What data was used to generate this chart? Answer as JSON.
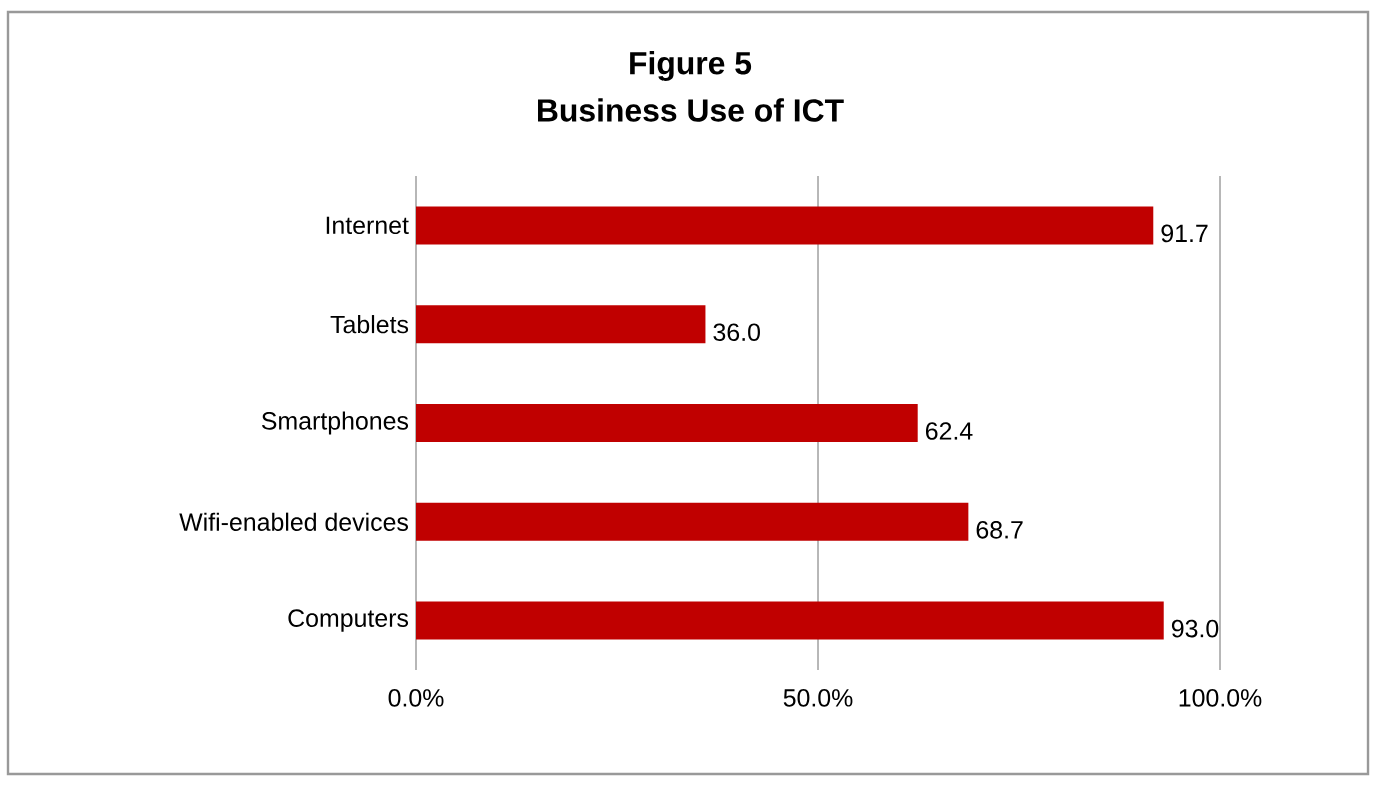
{
  "chart_data": {
    "type": "bar",
    "orientation": "horizontal",
    "title": "Figure 5",
    "subtitle": "Business Use of ICT",
    "categories": [
      "Internet",
      "Tablets",
      "Smartphones",
      "Wifi-enabled devices",
      "Computers"
    ],
    "values": [
      91.7,
      36.0,
      62.4,
      68.7,
      93.0
    ],
    "value_labels": [
      "91.7",
      "36.0",
      "62.4",
      "68.7",
      "93.0"
    ],
    "color": "#c00000",
    "xlim": [
      0,
      100
    ],
    "xticks": [
      {
        "value": 0,
        "label": "0.0%"
      },
      {
        "value": 50,
        "label": "50.0%"
      },
      {
        "value": 100,
        "label": "100.0%"
      }
    ],
    "grid": "x"
  }
}
